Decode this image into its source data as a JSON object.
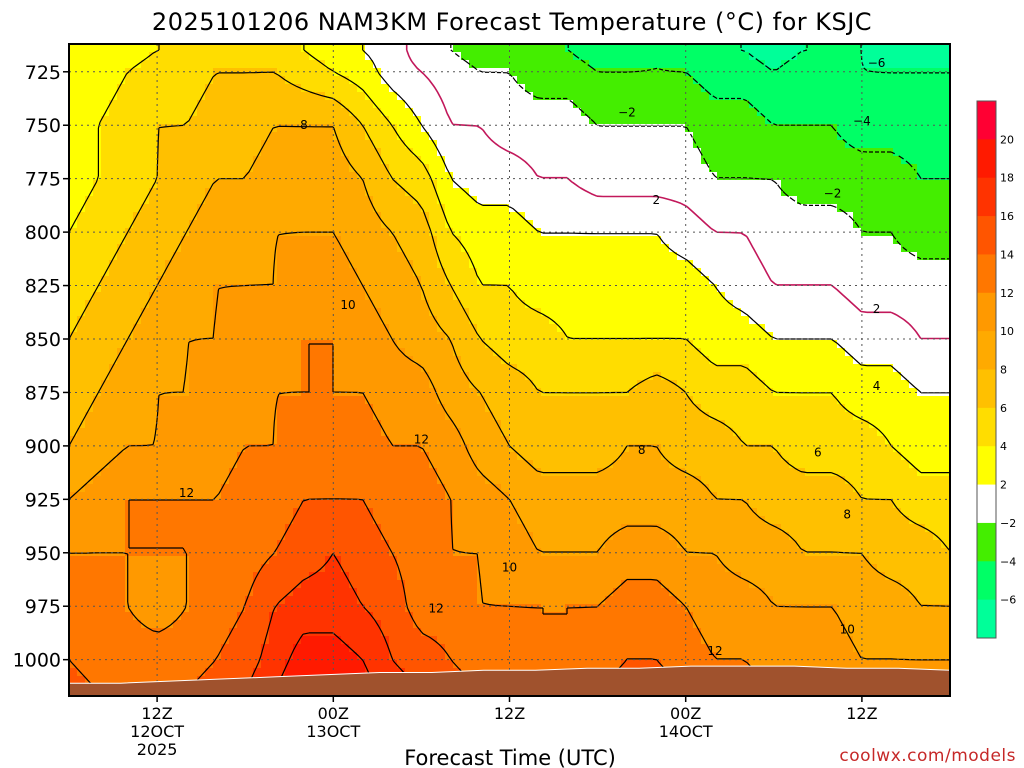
{
  "chart_data": {
    "type": "heatmap",
    "title": "2025101206 NAM3KM Forecast Temperature (°C) for KSJC",
    "xlabel": "Forecast Time (UTC)",
    "ylabel": "",
    "credit": "coolwx.com/models",
    "y_axis": {
      "range_hpa": [
        1017,
        712
      ],
      "ticks": [
        "725",
        "750",
        "775",
        "800",
        "825",
        "850",
        "875",
        "900",
        "925",
        "950",
        "975",
        "1000"
      ]
    },
    "x_axis": {
      "range_hours": [
        6,
        66
      ],
      "ticks": [
        {
          "hour": 12,
          "label": "12Z",
          "date": "12OCT",
          "year": "2025"
        },
        {
          "hour": 24,
          "label": "00Z",
          "date": "13OCT",
          "year": ""
        },
        {
          "hour": 36,
          "label": "12Z",
          "date": "",
          "year": ""
        },
        {
          "hour": 48,
          "label": "00Z",
          "date": "14OCT",
          "year": ""
        },
        {
          "hour": 60,
          "label": "12Z",
          "date": "",
          "year": ""
        }
      ]
    },
    "colorbar": {
      "levels": [
        "20",
        "18",
        "16",
        "14",
        "12",
        "10",
        "8",
        "6",
        "4",
        "2",
        "−2",
        "−4",
        "−6"
      ],
      "colors": [
        "#ff0033",
        "#ff1a00",
        "#ff3300",
        "#ff5500",
        "#ff7700",
        "#ff9900",
        "#ffaa00",
        "#ffc000",
        "#ffdd00",
        "#ffff00",
        "#ffffff",
        "#44ee00",
        "#00ff66",
        "#00ff99"
      ]
    },
    "surface_pressure_hpa": [
      1011,
      1011,
      1010,
      1009,
      1008,
      1007,
      1006,
      1006,
      1005,
      1005,
      1004,
      1004,
      1003,
      1003,
      1003,
      1004,
      1004,
      1005
    ],
    "surface_color": "#a0522d",
    "temperature_field": {
      "hours": [
        6,
        8,
        10,
        12,
        14,
        16,
        18,
        20,
        22,
        24,
        26,
        28,
        30,
        32,
        34,
        36,
        38,
        40,
        42,
        44,
        46,
        48,
        50,
        52,
        54,
        56,
        58,
        60,
        62,
        64,
        66
      ],
      "levels_hpa": [
        715,
        725,
        750,
        775,
        800,
        825,
        850,
        875,
        900,
        925,
        950,
        975,
        1000,
        1015
      ],
      "values_c": [
        [
          2,
          3,
          3,
          4,
          4,
          5,
          5,
          5,
          4,
          3,
          2,
          1,
          -1,
          -2,
          -3,
          -3,
          -3,
          -4,
          -5,
          -5,
          -4,
          -5,
          -6,
          -6,
          -7,
          -6,
          -6,
          -6,
          -7,
          -7,
          -7
        ],
        [
          2,
          3,
          4,
          5,
          5,
          6,
          6,
          6,
          5,
          4,
          3,
          1,
          0,
          -1,
          -2,
          -2,
          -3,
          -3,
          -4,
          -4,
          -4,
          -4,
          -5,
          -5,
          -6,
          -5,
          -5,
          -6,
          -6,
          -6,
          -6
        ],
        [
          3,
          4,
          5,
          6,
          6,
          7,
          7,
          8,
          8,
          8,
          6,
          4,
          2,
          0,
          0,
          -1,
          -1,
          -1,
          -2,
          -2,
          -2,
          -2,
          -3,
          -3,
          -4,
          -4,
          -4,
          -5,
          -5,
          -5,
          -5
        ],
        [
          3,
          4,
          5,
          6,
          7,
          8,
          8,
          9,
          9,
          9,
          8,
          6,
          5,
          2,
          1,
          1,
          0,
          0,
          -1,
          -1,
          -1,
          -1,
          -2,
          -2,
          -2,
          -3,
          -3,
          -3,
          -3,
          -4,
          -4
        ],
        [
          4,
          5,
          6,
          7,
          8,
          9,
          9,
          10,
          10,
          10,
          9,
          8,
          7,
          4,
          3,
          3,
          2,
          2,
          2,
          2,
          2,
          1,
          0,
          0,
          -1,
          -1,
          -1,
          -2,
          -2,
          -3,
          -3
        ],
        [
          5,
          6,
          7,
          8,
          9,
          10,
          10,
          10,
          11,
          11,
          10,
          9,
          8,
          6,
          4,
          4,
          3,
          3,
          3,
          3,
          3,
          3,
          2,
          1,
          0,
          0,
          0,
          -1,
          -1,
          -1,
          -1
        ],
        [
          6,
          7,
          8,
          9,
          10,
          10,
          11,
          11,
          12,
          12,
          11,
          10,
          9,
          8,
          6,
          5,
          5,
          4,
          4,
          4,
          4,
          4,
          3,
          3,
          2,
          2,
          2,
          1,
          1,
          0,
          0
        ],
        [
          7,
          8,
          9,
          10,
          10,
          11,
          11,
          12,
          12,
          12,
          12,
          11,
          11,
          9,
          8,
          7,
          6,
          6,
          6,
          6,
          7,
          6,
          5,
          5,
          4,
          4,
          4,
          3,
          3,
          2,
          2
        ],
        [
          8,
          9,
          10,
          10,
          11,
          11,
          12,
          12,
          13,
          13,
          13,
          12,
          12,
          11,
          9,
          8,
          7,
          7,
          7,
          8,
          8,
          7,
          7,
          6,
          6,
          5,
          5,
          5,
          4,
          3,
          3
        ],
        [
          10,
          11,
          12,
          12,
          12,
          12,
          13,
          13,
          14,
          14,
          14,
          13,
          13,
          12,
          11,
          10,
          9,
          9,
          9,
          9,
          9,
          9,
          8,
          8,
          7,
          7,
          7,
          6,
          6,
          5,
          5
        ],
        [
          12,
          12,
          12,
          12,
          12,
          12,
          13,
          14,
          15,
          16,
          15,
          14,
          13,
          12,
          12,
          11,
          10,
          10,
          10,
          11,
          11,
          10,
          10,
          9,
          9,
          8,
          8,
          8,
          7,
          7,
          6
        ],
        [
          13,
          13,
          12,
          11,
          12,
          13,
          14,
          16,
          17,
          17,
          16,
          15,
          13,
          13,
          12,
          12,
          12,
          12,
          12,
          13,
          13,
          12,
          11,
          11,
          10,
          10,
          10,
          9,
          9,
          8,
          8
        ],
        [
          14,
          13,
          13,
          13,
          13,
          14,
          15,
          17,
          19,
          19,
          18,
          16,
          15,
          14,
          13,
          13,
          12,
          12,
          13,
          14,
          14,
          13,
          12,
          12,
          11,
          11,
          11,
          10,
          10,
          10,
          10
        ],
        [
          15,
          14,
          14,
          14,
          14,
          15,
          16,
          18,
          20,
          20,
          19,
          17,
          16,
          15,
          14,
          14,
          13,
          13,
          14,
          15,
          15,
          14,
          13,
          13,
          12,
          12,
          12,
          11,
          11,
          11,
          11
        ]
      ]
    },
    "contour_labels": [
      {
        "text": "8",
        "hour": 22,
        "hpa": 750
      },
      {
        "text": "10",
        "hour": 25,
        "hpa": 834
      },
      {
        "text": "12",
        "hour": 30,
        "hpa": 897
      },
      {
        "text": "12",
        "hour": 14,
        "hpa": 922
      },
      {
        "text": "10",
        "hour": 36,
        "hpa": 957
      },
      {
        "text": "12",
        "hour": 31,
        "hpa": 976
      },
      {
        "text": "−2",
        "hour": 44,
        "hpa": 744
      },
      {
        "text": "−6",
        "hour": 61,
        "hpa": 721
      },
      {
        "text": "−4",
        "hour": 60,
        "hpa": 748
      },
      {
        "text": "2",
        "hour": 46,
        "hpa": 785
      },
      {
        "text": "−2",
        "hour": 58,
        "hpa": 782
      },
      {
        "text": "2",
        "hour": 61,
        "hpa": 836
      },
      {
        "text": "4",
        "hour": 61,
        "hpa": 872
      },
      {
        "text": "8",
        "hour": 45,
        "hpa": 902
      },
      {
        "text": "6",
        "hour": 57,
        "hpa": 903
      },
      {
        "text": "8",
        "hour": 59,
        "hpa": 932
      },
      {
        "text": "10",
        "hour": 59,
        "hpa": 986
      },
      {
        "text": "12",
        "hour": 50,
        "hpa": 996
      }
    ]
  }
}
